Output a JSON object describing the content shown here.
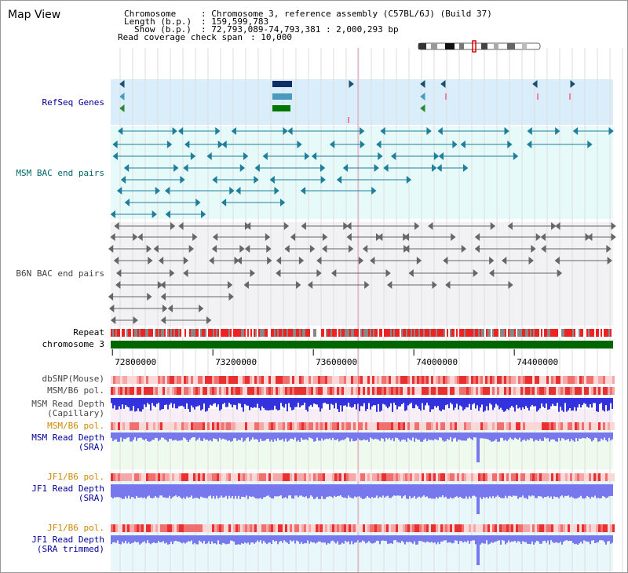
{
  "title": "Map View",
  "header": {
    "chromosome_key": "Chromosome",
    "chromosome_val": ": Chromosome 3, reference assembly (C57BL/6J) (Build 37)",
    "length_key": "Length (b.p.)",
    "length_val": ": 159,599,783",
    "show_key": "Show (b.p.)",
    "show_val": ": 72,793,089-74,793,381 : 2,000,293 bp",
    "coverage_key": "Read coverage check span",
    "coverage_val": ": 10,000"
  },
  "tracks": {
    "refseq": "RefSeq Genes",
    "msm_bac": "MSM BAC end pairs",
    "b6n_bac": "B6N BAC end pairs",
    "repeat": "Repeat",
    "chromosome": "chromosome 3",
    "dbsnp": "dbSNP(Mouse)",
    "msm_b6_pol_1": "MSM/B6 pol.",
    "msm_depth_cap_1": "MSM Read Depth",
    "msm_depth_cap_2": "(Capillary)",
    "msm_b6_pol_2": "MSM/B6 pol.",
    "msm_depth_sra_1": "MSM Read Depth",
    "msm_depth_sra_2": "(SRA)",
    "jf1_b6_pol_1": "JF1/B6 pol.",
    "jf1_depth_sra_1": "JF1 Read Depth",
    "jf1_depth_sra_2": "(SRA)",
    "jf1_b6_pol_2": "JF1/B6 pol.",
    "jf1_depth_trim_1": "JF1 Read Depth",
    "jf1_depth_trim_2": "(SRA trimmed)"
  },
  "axis": {
    "ticks": [
      "72800000",
      "73200000",
      "73600000",
      "74000000",
      "74400000"
    ],
    "tick_values": [
      72800000,
      73200000,
      73600000,
      74000000,
      74400000
    ],
    "range": [
      72793089,
      74793381
    ]
  },
  "colors": {
    "dark_blue_label": "#000099",
    "teal_label": "#006666",
    "gray_label": "#444444",
    "orange_label": "#cc8800",
    "refseq_bg": "#d9eefa",
    "msm_bg": "#e6fafa",
    "b6n_bg": "#f2f2f4",
    "chromosome_bar": "#006600",
    "repeat_red": "#ee2222",
    "depth_blue": "#3333dd",
    "depth_blue_light": "#7777ee",
    "pol_red": "#ee4444",
    "pol_pink": "#f4a0a0",
    "teal_feature": "#1f7f9a",
    "gray_feature": "#666666"
  }
}
